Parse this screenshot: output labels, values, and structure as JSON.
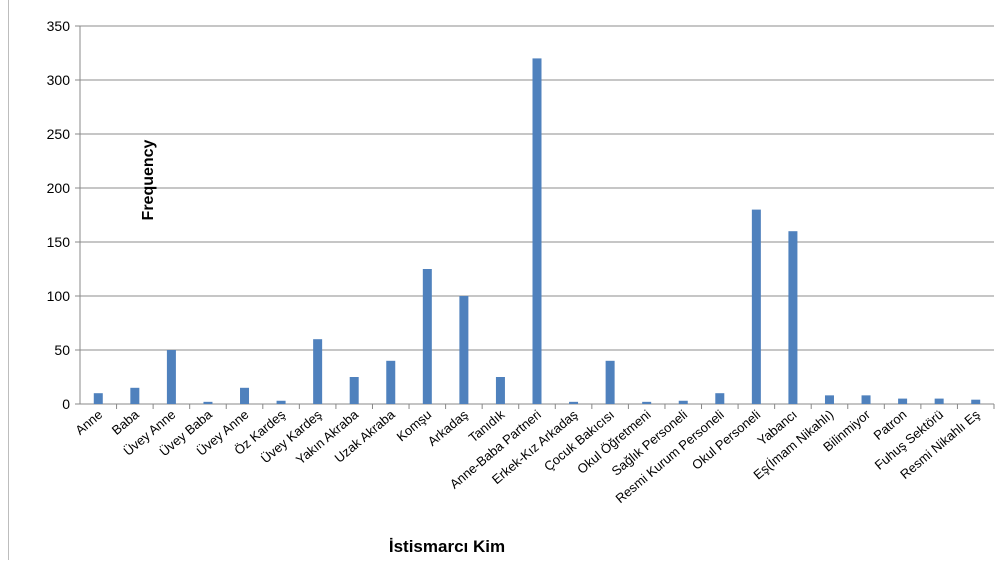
{
  "chart_data": {
    "type": "bar",
    "title": "",
    "xlabel": "İstismarcı Kim",
    "ylabel": "Frequency",
    "ylim": [
      0,
      350
    ],
    "yticks": [
      0,
      50,
      100,
      150,
      200,
      250,
      300,
      350
    ],
    "grid": true,
    "bar_color": "#4f81bd",
    "categories": [
      "Anne",
      "Baba",
      "Üvey Anne",
      "Üvey Baba",
      "Üvey Anne",
      "Öz Kardeş",
      "Üvey Kardeş",
      "Yakın Akraba",
      "Uzak Akraba",
      "Komşu",
      "Arkadaş",
      "Tanıdık",
      "Anne-Baba Partneri",
      "Erkek-Kız Arkadaş",
      "Çocuk Bakıcısı",
      "Okul Öğretmeni",
      "Sağlık Personeli",
      "Resmi Kurum Personeli",
      "Okul Personeli",
      "Yabancı",
      "Eş(İmam Nikahlı)",
      "Bilinmiyor",
      "Patron",
      "Fuhuş Sektörü",
      "Resmi Nikahlı Eş"
    ],
    "values": [
      10,
      15,
      50,
      2,
      15,
      3,
      60,
      25,
      40,
      125,
      100,
      25,
      320,
      2,
      40,
      2,
      3,
      10,
      180,
      160,
      8,
      8,
      5,
      5,
      4
    ]
  }
}
